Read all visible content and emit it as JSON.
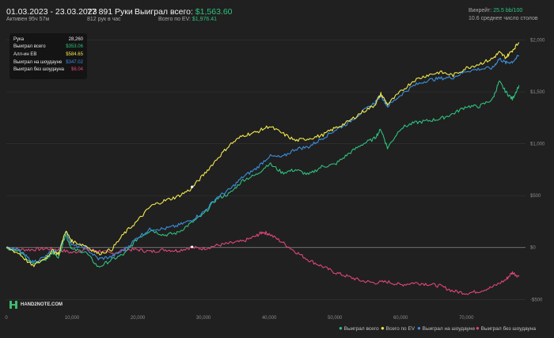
{
  "header": {
    "date_range": "01.03.2023 - 23.03.2023",
    "active_time": "Активен 95ч 57м",
    "hands": "77 891 Руки",
    "hands_per_hour": "812 рук в час",
    "won_total_label": "Выиграл всего:",
    "won_total_value": "$1,563.60",
    "ev_total_label": "Всего по EV:",
    "ev_total_value": "$1,976.41",
    "vpip_label": "Винрейт:",
    "vpip_value": "25.5 bb/100",
    "avg_tables": "10.6 среднее число столов"
  },
  "tooltip": {
    "rows": [
      {
        "label": "Рука",
        "value": "28,260",
        "color": "#e8e8e8"
      },
      {
        "label": "Выиграл всего",
        "value": "$353.06",
        "color": "#2ec27e"
      },
      {
        "label": "Алл-ин EB",
        "value": "$584.65",
        "color": "#f2e94e"
      },
      {
        "label": "Выиграл на шоудауне",
        "value": "$347.02",
        "color": "#3b8fe0"
      },
      {
        "label": "Выиграл без шоудауна",
        "value": "$6.04",
        "color": "#e0457b"
      }
    ]
  },
  "logo": {
    "text": "HAND2NOTE.COM"
  },
  "colors": {
    "green": "#2ec27e",
    "yellow": "#f2e94e",
    "blue": "#3b8fe0",
    "pink": "#e0457b",
    "grid": "#3a3a3a",
    "zero": "#7a7a7a",
    "tick": "#8a8a8a",
    "bg": "#202020"
  },
  "chart_data": {
    "type": "line",
    "x_ticks": [
      0,
      10000,
      20000,
      30000,
      40000,
      50000,
      60000,
      70000
    ],
    "x_tick_labels": [
      "0",
      "10,000",
      "20,000",
      "30,000",
      "40,000",
      "50,000",
      "60,000",
      "70,000"
    ],
    "y_ticks": [
      -500,
      0,
      500,
      1000,
      1500,
      2000
    ],
    "y_tick_labels": [
      "-$500",
      "$0",
      "$500",
      "$1,000",
      "$1,500",
      "$2,000"
    ],
    "xlim": [
      0,
      79000
    ],
    "ylim": [
      -620,
      2080
    ],
    "legend_position": "bottom-right",
    "series": [
      {
        "name": "Выиграл всего",
        "color": "#2ec27e",
        "points": [
          [
            0,
            0
          ],
          [
            2000,
            -40
          ],
          [
            4000,
            -160
          ],
          [
            6000,
            -110
          ],
          [
            7000,
            -50
          ],
          [
            8000,
            -90
          ],
          [
            9000,
            130
          ],
          [
            10000,
            -20
          ],
          [
            12000,
            -40
          ],
          [
            14000,
            -190
          ],
          [
            16000,
            -120
          ],
          [
            18000,
            -60
          ],
          [
            20000,
            90
          ],
          [
            22000,
            170
          ],
          [
            24000,
            120
          ],
          [
            26000,
            140
          ],
          [
            28000,
            230
          ],
          [
            30000,
            320
          ],
          [
            32000,
            470
          ],
          [
            34000,
            520
          ],
          [
            36000,
            650
          ],
          [
            38000,
            700
          ],
          [
            40000,
            810
          ],
          [
            42000,
            720
          ],
          [
            44000,
            750
          ],
          [
            46000,
            700
          ],
          [
            48000,
            780
          ],
          [
            50000,
            800
          ],
          [
            52000,
            900
          ],
          [
            54000,
            990
          ],
          [
            56000,
            1050
          ],
          [
            57000,
            1140
          ],
          [
            58000,
            960
          ],
          [
            60000,
            1150
          ],
          [
            62000,
            1200
          ],
          [
            64000,
            1220
          ],
          [
            66000,
            1240
          ],
          [
            68000,
            1290
          ],
          [
            70000,
            1360
          ],
          [
            72000,
            1360
          ],
          [
            74000,
            1430
          ],
          [
            75000,
            1600
          ],
          [
            76000,
            1500
          ],
          [
            77000,
            1430
          ],
          [
            78000,
            1563
          ]
        ]
      },
      {
        "name": "Всего по EV",
        "color": "#f2e94e",
        "points": [
          [
            0,
            0
          ],
          [
            2000,
            -60
          ],
          [
            4000,
            -180
          ],
          [
            6000,
            -100
          ],
          [
            7000,
            -30
          ],
          [
            8000,
            -60
          ],
          [
            9000,
            160
          ],
          [
            10000,
            60
          ],
          [
            12000,
            20
          ],
          [
            14000,
            -60
          ],
          [
            16000,
            -20
          ],
          [
            18000,
            140
          ],
          [
            20000,
            260
          ],
          [
            22000,
            400
          ],
          [
            24000,
            450
          ],
          [
            26000,
            490
          ],
          [
            28000,
            560
          ],
          [
            30000,
            700
          ],
          [
            32000,
            850
          ],
          [
            34000,
            990
          ],
          [
            36000,
            1080
          ],
          [
            38000,
            1110
          ],
          [
            40000,
            1170
          ],
          [
            42000,
            1100
          ],
          [
            44000,
            1030
          ],
          [
            46000,
            1050
          ],
          [
            48000,
            1080
          ],
          [
            50000,
            1150
          ],
          [
            52000,
            1210
          ],
          [
            54000,
            1300
          ],
          [
            56000,
            1370
          ],
          [
            57000,
            1480
          ],
          [
            58000,
            1380
          ],
          [
            60000,
            1500
          ],
          [
            62000,
            1610
          ],
          [
            64000,
            1660
          ],
          [
            66000,
            1690
          ],
          [
            68000,
            1660
          ],
          [
            70000,
            1730
          ],
          [
            72000,
            1770
          ],
          [
            74000,
            1820
          ],
          [
            75000,
            1880
          ],
          [
            76000,
            1830
          ],
          [
            77000,
            1900
          ],
          [
            78000,
            1976
          ]
        ]
      },
      {
        "name": "Выиграл на шоудауне",
        "color": "#3b8fe0",
        "points": [
          [
            0,
            0
          ],
          [
            2000,
            -30
          ],
          [
            4000,
            -140
          ],
          [
            6000,
            -90
          ],
          [
            7000,
            -30
          ],
          [
            8000,
            -50
          ],
          [
            9000,
            160
          ],
          [
            10000,
            20
          ],
          [
            12000,
            0
          ],
          [
            14000,
            -110
          ],
          [
            16000,
            -90
          ],
          [
            18000,
            -20
          ],
          [
            20000,
            100
          ],
          [
            22000,
            180
          ],
          [
            24000,
            180
          ],
          [
            26000,
            210
          ],
          [
            28000,
            260
          ],
          [
            30000,
            340
          ],
          [
            32000,
            480
          ],
          [
            34000,
            560
          ],
          [
            36000,
            680
          ],
          [
            38000,
            760
          ],
          [
            40000,
            880
          ],
          [
            42000,
            870
          ],
          [
            44000,
            950
          ],
          [
            46000,
            970
          ],
          [
            48000,
            1050
          ],
          [
            50000,
            1130
          ],
          [
            52000,
            1200
          ],
          [
            54000,
            1300
          ],
          [
            56000,
            1390
          ],
          [
            57000,
            1470
          ],
          [
            58000,
            1360
          ],
          [
            60000,
            1470
          ],
          [
            62000,
            1560
          ],
          [
            64000,
            1610
          ],
          [
            66000,
            1630
          ],
          [
            68000,
            1640
          ],
          [
            70000,
            1700
          ],
          [
            72000,
            1720
          ],
          [
            74000,
            1730
          ],
          [
            75000,
            1820
          ],
          [
            76000,
            1780
          ],
          [
            77000,
            1790
          ],
          [
            78000,
            1850
          ]
        ]
      },
      {
        "name": "Выиграл без шоудауна",
        "color": "#e0457b",
        "points": [
          [
            0,
            0
          ],
          [
            2000,
            -20
          ],
          [
            4000,
            -20
          ],
          [
            6000,
            -10
          ],
          [
            8000,
            -20
          ],
          [
            10000,
            -50
          ],
          [
            12000,
            -20
          ],
          [
            14000,
            -30
          ],
          [
            16000,
            -60
          ],
          [
            18000,
            -20
          ],
          [
            20000,
            -20
          ],
          [
            22000,
            -40
          ],
          [
            24000,
            -20
          ],
          [
            26000,
            -30
          ],
          [
            28000,
            0
          ],
          [
            30000,
            -10
          ],
          [
            32000,
            20
          ],
          [
            34000,
            40
          ],
          [
            36000,
            60
          ],
          [
            38000,
            110
          ],
          [
            39000,
            150
          ],
          [
            40000,
            130
          ],
          [
            42000,
            50
          ],
          [
            44000,
            -40
          ],
          [
            46000,
            -120
          ],
          [
            48000,
            -180
          ],
          [
            50000,
            -240
          ],
          [
            52000,
            -280
          ],
          [
            54000,
            -320
          ],
          [
            56000,
            -340
          ],
          [
            58000,
            -330
          ],
          [
            60000,
            -360
          ],
          [
            62000,
            -340
          ],
          [
            64000,
            -350
          ],
          [
            66000,
            -370
          ],
          [
            68000,
            -420
          ],
          [
            70000,
            -440
          ],
          [
            72000,
            -420
          ],
          [
            74000,
            -380
          ],
          [
            76000,
            -310
          ],
          [
            77000,
            -240
          ],
          [
            78000,
            -280
          ]
        ]
      }
    ]
  }
}
